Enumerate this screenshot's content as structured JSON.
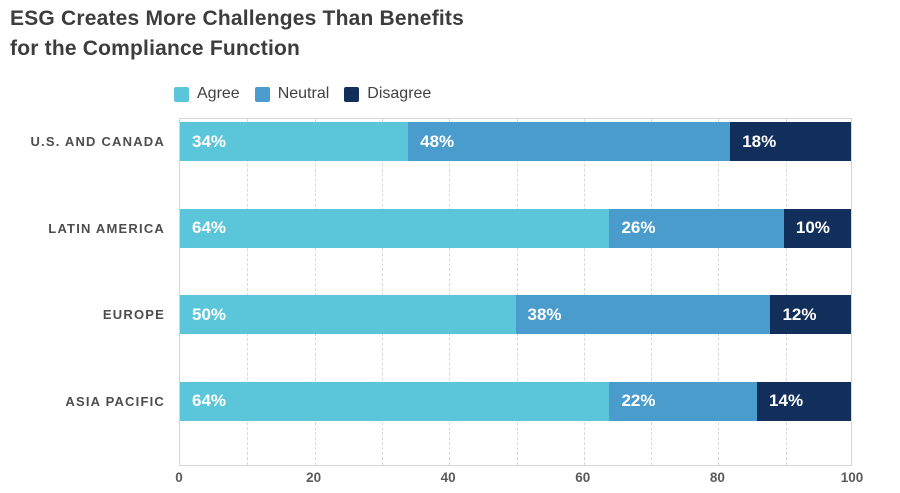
{
  "title": {
    "line1": "ESG Creates More Challenges Than Benefits",
    "line2": "for the Compliance Function"
  },
  "colors": {
    "agree": "#5BC6DA",
    "neutral": "#4A9CCC",
    "disagree": "#122F5C"
  },
  "chart_data": {
    "type": "bar",
    "stacked": true,
    "orientation": "horizontal",
    "title": "ESG Creates More Challenges Than Benefits for the Compliance Function",
    "categories": [
      "U.S. AND CANADA",
      "LATIN AMERICA",
      "EUROPE",
      "ASIA PACIFIC"
    ],
    "series": [
      {
        "name": "Agree",
        "color": "#5BC6DA",
        "values": [
          34,
          64,
          50,
          64
        ]
      },
      {
        "name": "Neutral",
        "color": "#4A9CCC",
        "values": [
          48,
          26,
          38,
          22
        ]
      },
      {
        "name": "Disagree",
        "color": "#122F5C",
        "values": [
          18,
          10,
          12,
          14
        ]
      }
    ],
    "value_suffix": "%",
    "xlabel": "",
    "ylabel": "",
    "xlim": [
      0,
      100
    ],
    "x_ticks": [
      0,
      20,
      40,
      60,
      80,
      100
    ],
    "gridline_step": 10,
    "grid": true,
    "legend_position": "top",
    "value_labels": "inside-left, white, bold"
  }
}
